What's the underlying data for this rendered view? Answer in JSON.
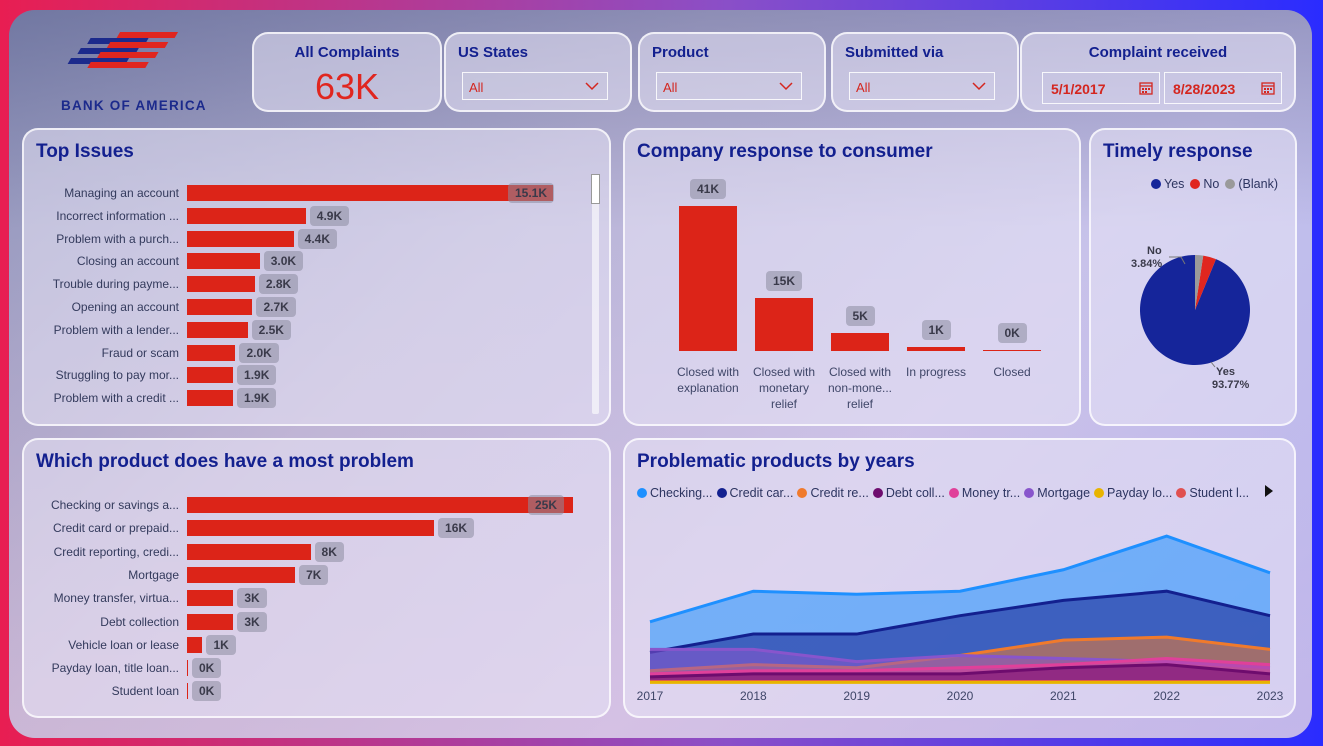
{
  "brand": {
    "name": "BANK OF AMERICA"
  },
  "kpi": {
    "label": "All Complaints",
    "value": "63K"
  },
  "filters": {
    "states": {
      "label": "US States",
      "value": "All"
    },
    "product": {
      "label": "Product",
      "value": "All"
    },
    "submitted": {
      "label": "Submitted via",
      "value": "All"
    },
    "received": {
      "label": "Complaint received",
      "from": "5/1/2017",
      "to": "8/28/2023"
    }
  },
  "top_issues": {
    "title": "Top Issues",
    "rows": [
      {
        "label": "Managing an account",
        "value": 15.1,
        "text": "15.1K"
      },
      {
        "label": "Incorrect information ...",
        "value": 4.9,
        "text": "4.9K"
      },
      {
        "label": "Problem with a purch...",
        "value": 4.4,
        "text": "4.4K"
      },
      {
        "label": "Closing an account",
        "value": 3.0,
        "text": "3.0K"
      },
      {
        "label": "Trouble during payme...",
        "value": 2.8,
        "text": "2.8K"
      },
      {
        "label": "Opening an account",
        "value": 2.7,
        "text": "2.7K"
      },
      {
        "label": "Problem with a lender...",
        "value": 2.5,
        "text": "2.5K"
      },
      {
        "label": "Fraud or scam",
        "value": 2.0,
        "text": "2.0K"
      },
      {
        "label": "Struggling to pay mor...",
        "value": 1.9,
        "text": "1.9K"
      },
      {
        "label": "Problem with a credit ...",
        "value": 1.9,
        "text": "1.9K"
      }
    ]
  },
  "company_response": {
    "title": "Company response to consumer",
    "bars": [
      {
        "label": [
          "Closed with",
          "explanation"
        ],
        "value": 41,
        "text": "41K"
      },
      {
        "label": [
          "Closed with",
          "monetary",
          "relief"
        ],
        "value": 15,
        "text": "15K"
      },
      {
        "label": [
          "Closed with",
          "non-mone...",
          "relief"
        ],
        "value": 5,
        "text": "5K"
      },
      {
        "label": [
          "In progress"
        ],
        "value": 1,
        "text": "1K"
      },
      {
        "label": [
          "Closed"
        ],
        "value": 0,
        "text": "0K"
      }
    ]
  },
  "timely": {
    "title": "Timely response",
    "legend": [
      {
        "name": "Yes",
        "color": "#15259a"
      },
      {
        "name": "No",
        "color": "#e0261f"
      },
      {
        "name": "(Blank)",
        "color": "#9a9a9a"
      }
    ],
    "slices": [
      {
        "name": "Yes",
        "percent": 93.77,
        "text": "93.77%"
      },
      {
        "name": "No",
        "percent": 3.84,
        "text": "3.84%"
      },
      {
        "name": "(Blank)",
        "percent": 2.39
      }
    ]
  },
  "product_problem": {
    "title": "Which product does have a most problem",
    "rows": [
      {
        "label": "Checking or savings a...",
        "value": 25,
        "text": "25K"
      },
      {
        "label": "Credit card or prepaid...",
        "value": 16,
        "text": "16K"
      },
      {
        "label": "Credit reporting, credi...",
        "value": 8,
        "text": "8K"
      },
      {
        "label": "Mortgage",
        "value": 7,
        "text": "7K"
      },
      {
        "label": "Money transfer, virtua...",
        "value": 3,
        "text": "3K"
      },
      {
        "label": "Debt collection",
        "value": 3,
        "text": "3K"
      },
      {
        "label": "Vehicle loan or lease",
        "value": 1,
        "text": "1K"
      },
      {
        "label": "Payday loan, title loan...",
        "value": 0,
        "text": "0K"
      },
      {
        "label": "Student loan",
        "value": 0,
        "text": "0K"
      }
    ]
  },
  "chart_data": {
    "type": "area",
    "title": "Problematic products by years",
    "x": [
      "2017",
      "2018",
      "2019",
      "2020",
      "2021",
      "2022",
      "2023"
    ],
    "series": [
      {
        "name": "Checking...",
        "color": "#1e90ff",
        "values": [
          2.0,
          3.0,
          2.9,
          3.0,
          3.7,
          4.8,
          3.6
        ]
      },
      {
        "name": "Credit car...",
        "color": "#13208f",
        "values": [
          1.0,
          1.6,
          1.6,
          2.2,
          2.7,
          3.0,
          2.2
        ]
      },
      {
        "name": "Credit re...",
        "color": "#f07a2c",
        "values": [
          0.4,
          0.6,
          0.5,
          0.9,
          1.4,
          1.5,
          1.1
        ]
      },
      {
        "name": "Debt coll...",
        "color": "#6e0c6e",
        "values": [
          0.2,
          0.3,
          0.3,
          0.3,
          0.5,
          0.6,
          0.3
        ]
      },
      {
        "name": "Money tr...",
        "color": "#e0409a",
        "values": [
          0.3,
          0.4,
          0.4,
          0.5,
          0.6,
          0.8,
          0.6
        ]
      },
      {
        "name": "Mortgage",
        "color": "#8855cc",
        "values": [
          1.1,
          1.1,
          0.7,
          0.9,
          0.8,
          0.7,
          0.5
        ]
      },
      {
        "name": "Payday lo...",
        "color": "#e8b400",
        "values": [
          0.02,
          0.02,
          0.02,
          0.02,
          0.02,
          0.02,
          0.02
        ]
      },
      {
        "name": "Student l...",
        "color": "#e05050",
        "values": [
          0.05,
          0.05,
          0.05,
          0.05,
          0.05,
          0.05,
          0.05
        ]
      }
    ]
  }
}
